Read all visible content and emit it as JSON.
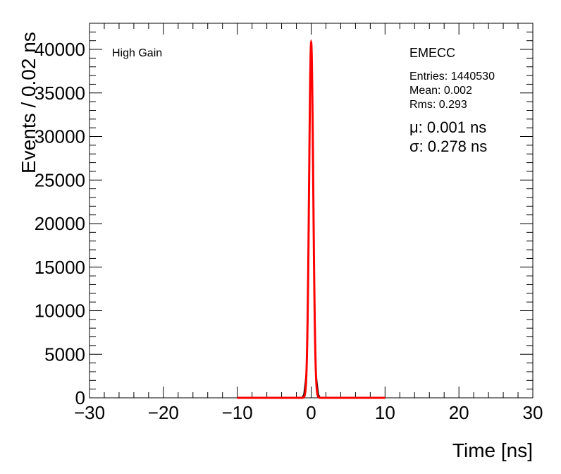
{
  "chart_data": {
    "type": "line",
    "xlabel": "Time [ns]",
    "ylabel": "Events / 0.02 ns",
    "xlim": [
      -30,
      30
    ],
    "ylim": [
      0,
      43000
    ],
    "x_ticks": [
      -30,
      -20,
      -10,
      0,
      10,
      20,
      30
    ],
    "x_tick_labels": [
      "−30",
      "−20",
      "−10",
      "0",
      "10",
      "20",
      "30"
    ],
    "y_ticks": [
      0,
      5000,
      10000,
      15000,
      20000,
      25000,
      30000,
      35000,
      40000
    ],
    "y_tick_labels": [
      "0",
      "5000",
      "10000",
      "15000",
      "20000",
      "25000",
      "30000",
      "35000",
      "40000"
    ],
    "grid": false,
    "colors": {
      "data": "#000000",
      "fit": "#ff0000"
    },
    "annotations": {
      "gain": "High Gain",
      "region": "EMECC",
      "entries": "Entries: 1440530",
      "mean": "Mean: 0.002",
      "rms": "Rms: 0.293",
      "mu": "μ: 0.001 ns",
      "sigma": "σ: 0.278 ns"
    },
    "series": [
      {
        "style": "histogram",
        "x": [
          -1.2,
          -1.0,
          -0.8,
          -0.6,
          -0.4,
          -0.3,
          -0.2,
          -0.1,
          0.0,
          0.1,
          0.2,
          0.3,
          0.4,
          0.6,
          0.8,
          1.0,
          1.2
        ],
        "values": [
          50,
          400,
          1800,
          3500,
          12000,
          21000,
          32000,
          39500,
          41000,
          39000,
          31000,
          21000,
          12000,
          3500,
          1800,
          400,
          50
        ]
      },
      {
        "style": "fit-line",
        "x_range": [
          -10,
          10
        ],
        "mu": 0.001,
        "sigma": 0.278,
        "amplitude": 40800
      }
    ]
  }
}
